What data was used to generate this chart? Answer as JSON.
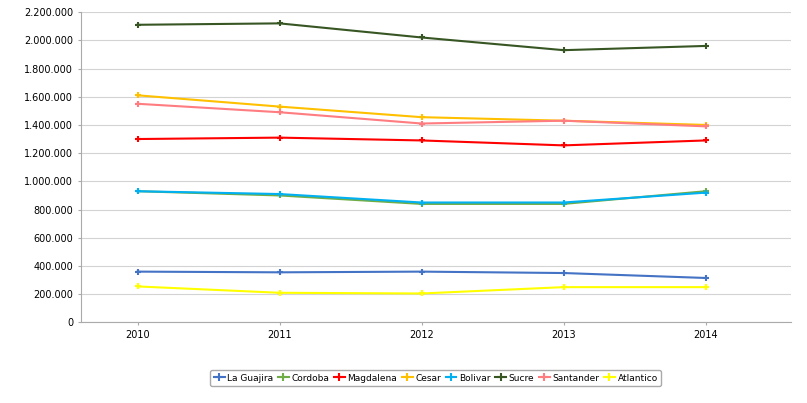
{
  "years": [
    2010,
    2011,
    2012,
    2013,
    2014
  ],
  "series": {
    "La Guajira": {
      "values": [
        360000,
        355000,
        360000,
        350000,
        315000
      ],
      "color": "#4472C4",
      "marker": "+"
    },
    "Cordoba": {
      "values": [
        930000,
        900000,
        840000,
        840000,
        930000
      ],
      "color": "#70AD47",
      "marker": "+"
    },
    "Magdalena": {
      "values": [
        1300000,
        1310000,
        1290000,
        1255000,
        1290000
      ],
      "color": "#FF0000",
      "marker": "+"
    },
    "Cesar": {
      "values": [
        1610000,
        1530000,
        1455000,
        1430000,
        1400000
      ],
      "color": "#FFC000",
      "marker": "+"
    },
    "Bolivar": {
      "values": [
        930000,
        910000,
        850000,
        850000,
        920000
      ],
      "color": "#00B0F0",
      "marker": "+"
    },
    "Sucre": {
      "values": [
        2110000,
        2120000,
        2020000,
        1930000,
        1960000
      ],
      "color": "#375623",
      "marker": "+"
    },
    "Santander": {
      "values": [
        1550000,
        1490000,
        1410000,
        1430000,
        1390000
      ],
      "color": "#FF7C80",
      "marker": "+"
    },
    "Atlantico": {
      "values": [
        255000,
        210000,
        205000,
        250000,
        250000
      ],
      "color": "#FFFF00",
      "marker": "+"
    }
  },
  "ylim": [
    0,
    2200000
  ],
  "ytick_step": 200000,
  "xlabel": "",
  "ylabel": "",
  "figure_facecolor": "#FFFFFF",
  "axes_facecolor": "#FFFFFF",
  "grid_color": "#D3D3D3",
  "legend_labels": [
    "La Guajira",
    "Cordoba",
    "Magdalena",
    "Cesar",
    "Bolivar",
    "Sucre",
    "Santander",
    "Atlantico"
  ]
}
